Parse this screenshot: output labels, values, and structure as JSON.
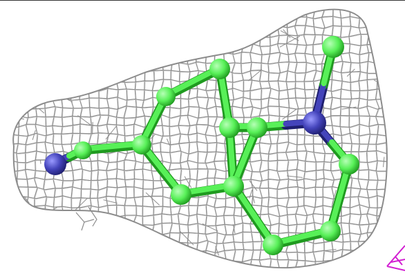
{
  "scene": {
    "background": "#ffffff",
    "border_color": "#333333",
    "mesh_color": "#8c8c8c",
    "mesh_highlight": "#d0d0d0",
    "carbon_color": "#58f058",
    "carbon_highlight": "#b6ffb6",
    "carbon_shadow": "#1f9a1f",
    "nitrogen_color": "#4444bb",
    "nitrogen_highlight": "#9a9aff",
    "nitrogen_shadow": "#1f1f70",
    "contour_fragment_color": "#d21fd2"
  }
}
